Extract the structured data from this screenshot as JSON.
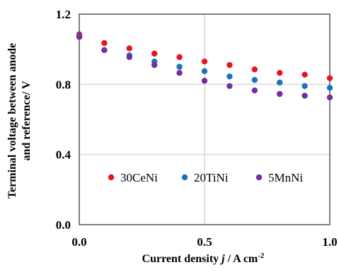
{
  "chart_data": {
    "type": "scatter",
    "xlabel_prefix": "Current density ",
    "xlabel_var": "j",
    "xlabel_suffix": " / A cm",
    "xlabel_sup": "-2",
    "ylabel_line1": "Terminal voltage between anode",
    "ylabel_line2": "and reference/ V",
    "xlim": [
      0.0,
      1.0
    ],
    "ylim": [
      0.0,
      1.2
    ],
    "xticks": [
      "0.0",
      "0.5",
      "1.0"
    ],
    "yticks": [
      "0.0",
      "0.4",
      "0.8",
      "1.2"
    ],
    "xtick_values": [
      0.0,
      0.5,
      1.0
    ],
    "ytick_values": [
      0.0,
      0.4,
      0.8,
      1.2
    ],
    "grid": true,
    "legend_position": "lower-center",
    "series": [
      {
        "name": "30CeNi",
        "color": "#e8141e",
        "x": [
          0.0,
          0.1,
          0.2,
          0.3,
          0.4,
          0.5,
          0.6,
          0.7,
          0.8,
          0.9,
          1.0
        ],
        "y": [
          1.085,
          1.035,
          1.005,
          0.975,
          0.955,
          0.93,
          0.91,
          0.885,
          0.865,
          0.855,
          0.835
        ]
      },
      {
        "name": "20TiNi",
        "color": "#1a74b9",
        "x": [
          0.0,
          0.1,
          0.2,
          0.3,
          0.4,
          0.5,
          0.6,
          0.7,
          0.8,
          0.9,
          1.0
        ],
        "y": [
          1.075,
          0.995,
          0.965,
          0.93,
          0.9,
          0.875,
          0.845,
          0.825,
          0.81,
          0.79,
          0.78
        ]
      },
      {
        "name": "5MnNi",
        "color": "#7030a0",
        "x": [
          0.0,
          0.1,
          0.2,
          0.3,
          0.4,
          0.5,
          0.6,
          0.7,
          0.8,
          0.9,
          1.0
        ],
        "y": [
          1.07,
          0.995,
          0.955,
          0.91,
          0.865,
          0.82,
          0.79,
          0.765,
          0.745,
          0.735,
          0.725
        ]
      }
    ]
  }
}
